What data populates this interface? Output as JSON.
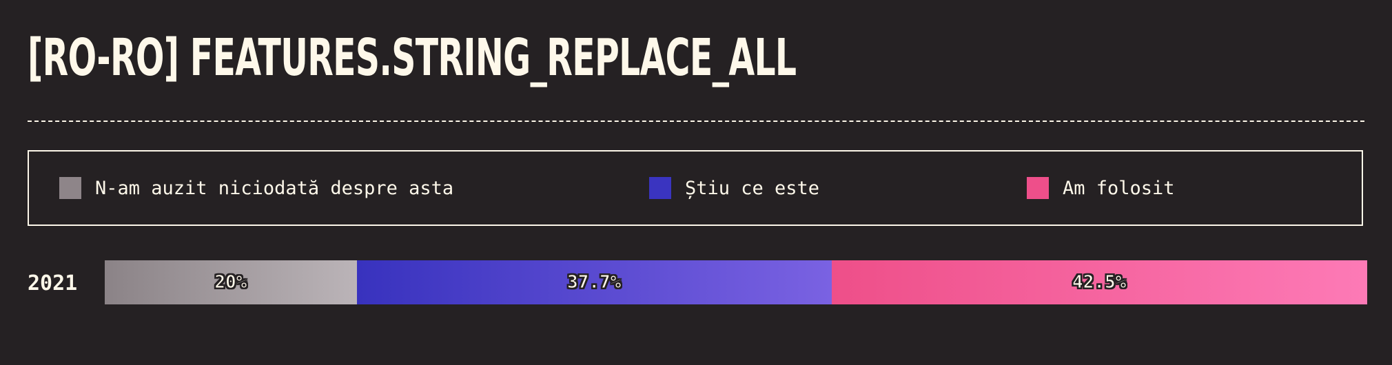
{
  "title": "[RO-RO] FEATURES.STRING_REPLACE_ALL",
  "legend": [
    {
      "label": "N-am auzit niciodată despre asta",
      "color": "#8e8589"
    },
    {
      "label": "Știu ce este",
      "color": "#3a34c0"
    },
    {
      "label": "Am folosit",
      "color": "#ee4f8a"
    }
  ],
  "chart_data": {
    "type": "bar",
    "orientation": "horizontal",
    "stacked": true,
    "categories": [
      "2021"
    ],
    "series": [
      {
        "name": "N-am auzit niciodată despre asta",
        "values": [
          20
        ],
        "label": "20%",
        "color_start": "#8b8387",
        "color_end": "#bbb4b8"
      },
      {
        "name": "Știu ce este",
        "values": [
          37.7
        ],
        "label": "37.7%",
        "color_start": "#3832be",
        "color_end": "#7a62e2"
      },
      {
        "name": "Am folosit",
        "values": [
          42.5
        ],
        "label": "42.5%",
        "color_start": "#ee4f89",
        "color_end": "#fd7ab6"
      }
    ],
    "xlim": [
      0,
      100
    ],
    "unit": "%"
  }
}
